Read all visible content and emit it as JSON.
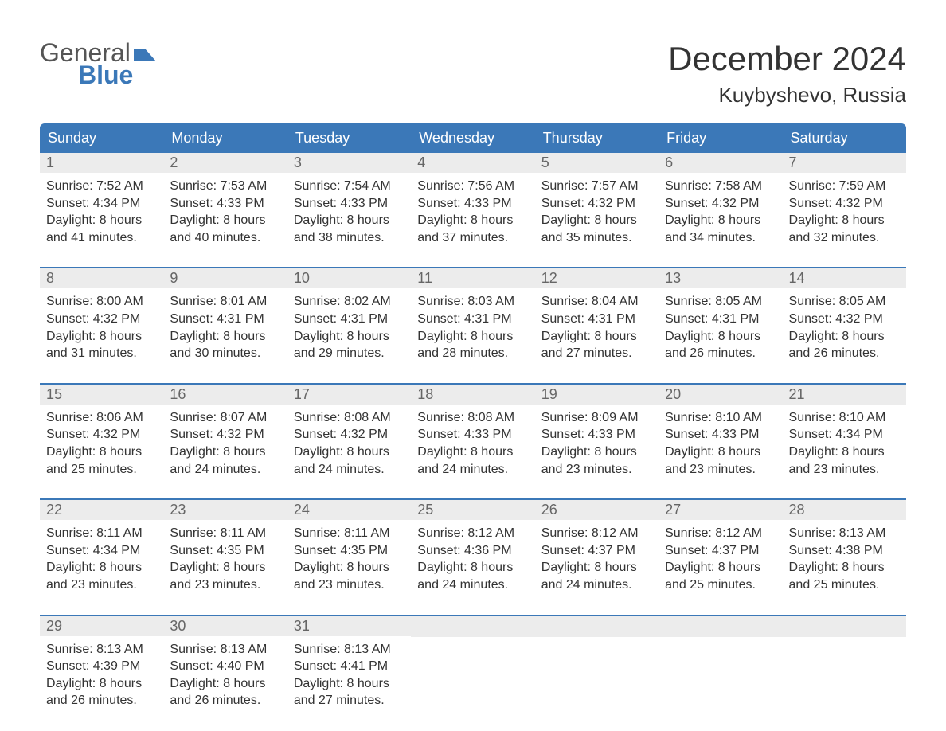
{
  "logo": {
    "line1": "General",
    "line2": "Blue"
  },
  "title": "December 2024",
  "location": "Kuybyshevo, Russia",
  "colors": {
    "header_bg": "#3b78b8",
    "daynum_bg": "#ececec",
    "text": "#333333",
    "logo_blue": "#3b78b8"
  },
  "day_names": [
    "Sunday",
    "Monday",
    "Tuesday",
    "Wednesday",
    "Thursday",
    "Friday",
    "Saturday"
  ],
  "weeks": [
    [
      {
        "day": "1",
        "sunrise": "Sunrise: 7:52 AM",
        "sunset": "Sunset: 4:34 PM",
        "d1": "Daylight: 8 hours",
        "d2": "and 41 minutes."
      },
      {
        "day": "2",
        "sunrise": "Sunrise: 7:53 AM",
        "sunset": "Sunset: 4:33 PM",
        "d1": "Daylight: 8 hours",
        "d2": "and 40 minutes."
      },
      {
        "day": "3",
        "sunrise": "Sunrise: 7:54 AM",
        "sunset": "Sunset: 4:33 PM",
        "d1": "Daylight: 8 hours",
        "d2": "and 38 minutes."
      },
      {
        "day": "4",
        "sunrise": "Sunrise: 7:56 AM",
        "sunset": "Sunset: 4:33 PM",
        "d1": "Daylight: 8 hours",
        "d2": "and 37 minutes."
      },
      {
        "day": "5",
        "sunrise": "Sunrise: 7:57 AM",
        "sunset": "Sunset: 4:32 PM",
        "d1": "Daylight: 8 hours",
        "d2": "and 35 minutes."
      },
      {
        "day": "6",
        "sunrise": "Sunrise: 7:58 AM",
        "sunset": "Sunset: 4:32 PM",
        "d1": "Daylight: 8 hours",
        "d2": "and 34 minutes."
      },
      {
        "day": "7",
        "sunrise": "Sunrise: 7:59 AM",
        "sunset": "Sunset: 4:32 PM",
        "d1": "Daylight: 8 hours",
        "d2": "and 32 minutes."
      }
    ],
    [
      {
        "day": "8",
        "sunrise": "Sunrise: 8:00 AM",
        "sunset": "Sunset: 4:32 PM",
        "d1": "Daylight: 8 hours",
        "d2": "and 31 minutes."
      },
      {
        "day": "9",
        "sunrise": "Sunrise: 8:01 AM",
        "sunset": "Sunset: 4:31 PM",
        "d1": "Daylight: 8 hours",
        "d2": "and 30 minutes."
      },
      {
        "day": "10",
        "sunrise": "Sunrise: 8:02 AM",
        "sunset": "Sunset: 4:31 PM",
        "d1": "Daylight: 8 hours",
        "d2": "and 29 minutes."
      },
      {
        "day": "11",
        "sunrise": "Sunrise: 8:03 AM",
        "sunset": "Sunset: 4:31 PM",
        "d1": "Daylight: 8 hours",
        "d2": "and 28 minutes."
      },
      {
        "day": "12",
        "sunrise": "Sunrise: 8:04 AM",
        "sunset": "Sunset: 4:31 PM",
        "d1": "Daylight: 8 hours",
        "d2": "and 27 minutes."
      },
      {
        "day": "13",
        "sunrise": "Sunrise: 8:05 AM",
        "sunset": "Sunset: 4:31 PM",
        "d1": "Daylight: 8 hours",
        "d2": "and 26 minutes."
      },
      {
        "day": "14",
        "sunrise": "Sunrise: 8:05 AM",
        "sunset": "Sunset: 4:32 PM",
        "d1": "Daylight: 8 hours",
        "d2": "and 26 minutes."
      }
    ],
    [
      {
        "day": "15",
        "sunrise": "Sunrise: 8:06 AM",
        "sunset": "Sunset: 4:32 PM",
        "d1": "Daylight: 8 hours",
        "d2": "and 25 minutes."
      },
      {
        "day": "16",
        "sunrise": "Sunrise: 8:07 AM",
        "sunset": "Sunset: 4:32 PM",
        "d1": "Daylight: 8 hours",
        "d2": "and 24 minutes."
      },
      {
        "day": "17",
        "sunrise": "Sunrise: 8:08 AM",
        "sunset": "Sunset: 4:32 PM",
        "d1": "Daylight: 8 hours",
        "d2": "and 24 minutes."
      },
      {
        "day": "18",
        "sunrise": "Sunrise: 8:08 AM",
        "sunset": "Sunset: 4:33 PM",
        "d1": "Daylight: 8 hours",
        "d2": "and 24 minutes."
      },
      {
        "day": "19",
        "sunrise": "Sunrise: 8:09 AM",
        "sunset": "Sunset: 4:33 PM",
        "d1": "Daylight: 8 hours",
        "d2": "and 23 minutes."
      },
      {
        "day": "20",
        "sunrise": "Sunrise: 8:10 AM",
        "sunset": "Sunset: 4:33 PM",
        "d1": "Daylight: 8 hours",
        "d2": "and 23 minutes."
      },
      {
        "day": "21",
        "sunrise": "Sunrise: 8:10 AM",
        "sunset": "Sunset: 4:34 PM",
        "d1": "Daylight: 8 hours",
        "d2": "and 23 minutes."
      }
    ],
    [
      {
        "day": "22",
        "sunrise": "Sunrise: 8:11 AM",
        "sunset": "Sunset: 4:34 PM",
        "d1": "Daylight: 8 hours",
        "d2": "and 23 minutes."
      },
      {
        "day": "23",
        "sunrise": "Sunrise: 8:11 AM",
        "sunset": "Sunset: 4:35 PM",
        "d1": "Daylight: 8 hours",
        "d2": "and 23 minutes."
      },
      {
        "day": "24",
        "sunrise": "Sunrise: 8:11 AM",
        "sunset": "Sunset: 4:35 PM",
        "d1": "Daylight: 8 hours",
        "d2": "and 23 minutes."
      },
      {
        "day": "25",
        "sunrise": "Sunrise: 8:12 AM",
        "sunset": "Sunset: 4:36 PM",
        "d1": "Daylight: 8 hours",
        "d2": "and 24 minutes."
      },
      {
        "day": "26",
        "sunrise": "Sunrise: 8:12 AM",
        "sunset": "Sunset: 4:37 PM",
        "d1": "Daylight: 8 hours",
        "d2": "and 24 minutes."
      },
      {
        "day": "27",
        "sunrise": "Sunrise: 8:12 AM",
        "sunset": "Sunset: 4:37 PM",
        "d1": "Daylight: 8 hours",
        "d2": "and 25 minutes."
      },
      {
        "day": "28",
        "sunrise": "Sunrise: 8:13 AM",
        "sunset": "Sunset: 4:38 PM",
        "d1": "Daylight: 8 hours",
        "d2": "and 25 minutes."
      }
    ],
    [
      {
        "day": "29",
        "sunrise": "Sunrise: 8:13 AM",
        "sunset": "Sunset: 4:39 PM",
        "d1": "Daylight: 8 hours",
        "d2": "and 26 minutes."
      },
      {
        "day": "30",
        "sunrise": "Sunrise: 8:13 AM",
        "sunset": "Sunset: 4:40 PM",
        "d1": "Daylight: 8 hours",
        "d2": "and 26 minutes."
      },
      {
        "day": "31",
        "sunrise": "Sunrise: 8:13 AM",
        "sunset": "Sunset: 4:41 PM",
        "d1": "Daylight: 8 hours",
        "d2": "and 27 minutes."
      },
      {
        "empty": true
      },
      {
        "empty": true
      },
      {
        "empty": true
      },
      {
        "empty": true
      }
    ]
  ]
}
